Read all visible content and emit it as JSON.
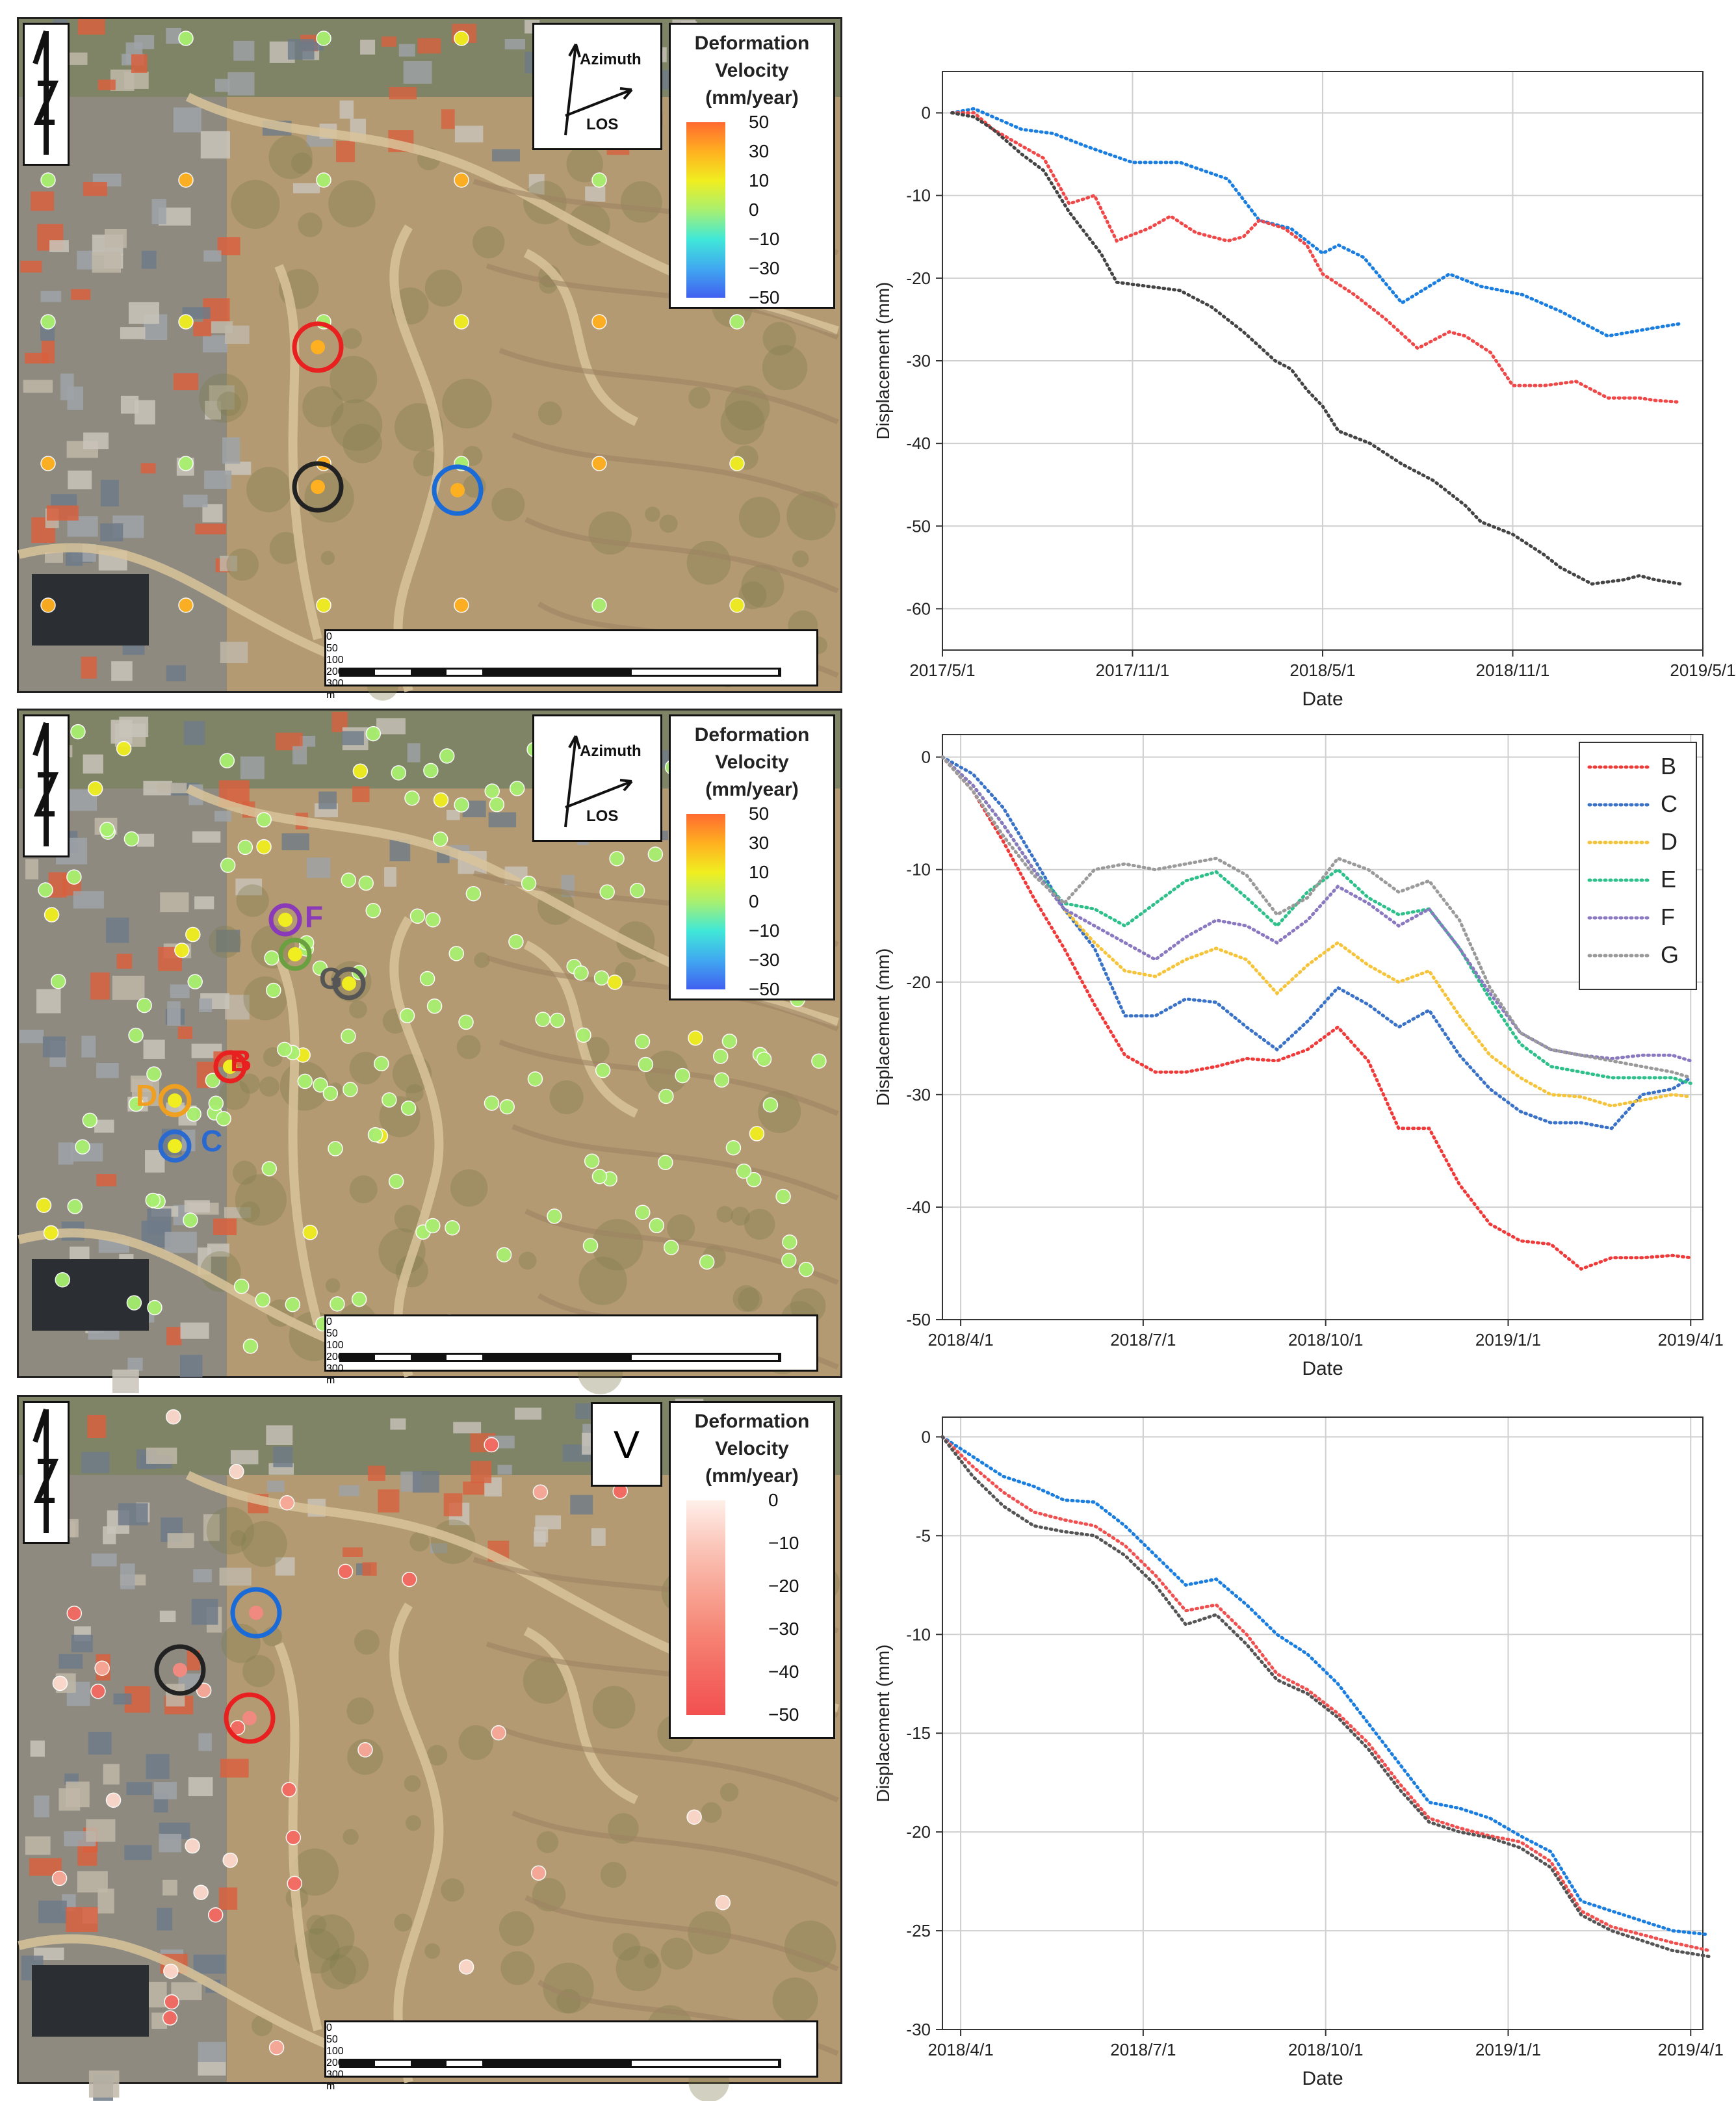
{
  "maps": [
    {
      "legend": {
        "title": [
          "Deformation",
          "Velocity",
          "(mm/year)"
        ],
        "ticks": [
          "50",
          "30",
          "10",
          "0",
          "−10",
          "−30",
          "−50"
        ],
        "colors": [
          "#ff6a30",
          "#ffb020",
          "#f0ee20",
          "#a8f070",
          "#40e8d8",
          "#40a8f0",
          "#4060f0"
        ]
      },
      "direction": {
        "azimuth": "Azimuth",
        "los": "LOS"
      },
      "scale": {
        "ticks": [
          "0",
          "50",
          "100",
          "200",
          "300"
        ],
        "unit": "m"
      },
      "point_labels": []
    },
    {
      "legend": {
        "title": [
          "Deformation",
          "Velocity",
          "(mm/year)"
        ],
        "ticks": [
          "50",
          "30",
          "10",
          "0",
          "−10",
          "−30",
          "−50"
        ],
        "colors": [
          "#ff6a30",
          "#ffb020",
          "#f0ee20",
          "#a8f070",
          "#40e8d8",
          "#40a8f0",
          "#4060f0"
        ]
      },
      "direction": {
        "azimuth": "Azimuth",
        "los": "LOS"
      },
      "scale": {
        "ticks": [
          "0",
          "50",
          "100",
          "200",
          "300"
        ],
        "unit": "m"
      },
      "point_labels": [
        {
          "text": "F",
          "color": "#8a3ab8"
        },
        {
          "text": "G",
          "color": "#555555"
        },
        {
          "text": "B",
          "color": "#e82020"
        },
        {
          "text": "D",
          "color": "#f0a020"
        },
        {
          "text": "C",
          "color": "#2a6ad0"
        }
      ]
    },
    {
      "legend": {
        "title": [
          "Deformation",
          "Velocity",
          "(mm/year)"
        ],
        "ticks": [
          "0",
          "−10",
          "−20",
          "−30",
          "−40",
          "−50"
        ],
        "colors": [
          "#fff0ea",
          "#fbc8bc",
          "#f8a898",
          "#f68878",
          "#f46a62",
          "#f25050"
        ]
      },
      "v_label": "V",
      "scale": {
        "ticks": [
          "0",
          "50",
          "100",
          "200",
          "300"
        ],
        "unit": "m"
      },
      "point_labels": []
    }
  ],
  "chart_data": [
    {
      "type": "line",
      "xlabel": "Date",
      "ylabel": "Displacement (mm)",
      "ylim": [
        -65,
        5
      ],
      "yticks": [
        0,
        -10,
        -20,
        -30,
        -40,
        -50,
        -60
      ],
      "xticks": [
        "2017/5/1",
        "2017/11/1",
        "2018/5/1",
        "2018/11/1",
        "2019/5/1"
      ],
      "xlim": [
        0,
        24
      ],
      "series": [
        {
          "name": "blue circle point",
          "color": "#1a7de0",
          "x": [
            0.3,
            1,
            1.6,
            2.5,
            3.5,
            4.5,
            6,
            7.5,
            9,
            10,
            11,
            12,
            12.5,
            13.3,
            14.5,
            16,
            17,
            18.3,
            19.5,
            21,
            22.5,
            23.3
          ],
          "values": [
            0,
            0.5,
            -0.5,
            -2,
            -2.5,
            -4,
            -6,
            -6,
            -8,
            -13,
            -14,
            -17,
            -16,
            -17.5,
            -23,
            -19.5,
            -21,
            -22,
            -24,
            -27,
            -26,
            -25.5
          ]
        },
        {
          "name": "red circle point",
          "color": "#f04848",
          "x": [
            0.3,
            1,
            1.6,
            2.5,
            3.2,
            4,
            4.8,
            5.5,
            6.5,
            7.2,
            8,
            9,
            9.5,
            10,
            10.8,
            11.5,
            12,
            13,
            14,
            15,
            16,
            16.5,
            17.3,
            18,
            19,
            20,
            21,
            22,
            22.5,
            23.3
          ],
          "values": [
            0,
            0,
            -2,
            -4,
            -5.5,
            -11,
            -10,
            -15.5,
            -14,
            -12.5,
            -14.5,
            -15.5,
            -15,
            -13,
            -14,
            -16,
            -19.5,
            -22,
            -25,
            -28.5,
            -26.5,
            -27,
            -29,
            -33,
            -33,
            -32.5,
            -34.5,
            -34.5,
            -34.8,
            -35
          ]
        },
        {
          "name": "black circle point",
          "color": "#444444",
          "x": [
            0.3,
            1,
            1.6,
            2.5,
            3.2,
            4,
            5,
            5.5,
            6.5,
            7.5,
            8.5,
            9.5,
            10.5,
            11,
            11.5,
            12,
            12.5,
            13.5,
            14.5,
            15.5,
            16,
            16.5,
            17,
            18,
            19,
            19.5,
            20.5,
            21.5,
            22,
            22.5,
            23.3
          ],
          "values": [
            0,
            -0.5,
            -2,
            -5,
            -7,
            -12,
            -17,
            -20.5,
            -21,
            -21.5,
            -23.5,
            -26.5,
            -30,
            -31,
            -33.5,
            -35.5,
            -38.5,
            -40,
            -42.5,
            -44.5,
            -46,
            -47.5,
            -49.5,
            -51,
            -53.5,
            -55,
            -57,
            -56.5,
            -56,
            -56.5,
            -57
          ]
        }
      ]
    },
    {
      "type": "line",
      "xlabel": "Date",
      "ylabel": "Displacement (mm)",
      "ylim": [
        -50,
        2
      ],
      "yticks": [
        0,
        -10,
        -20,
        -30,
        -40,
        -50
      ],
      "xticks": [
        "2018/4/1",
        "2018/7/1",
        "2018/10/1",
        "2019/1/1",
        "2019/4/1"
      ],
      "xlim": [
        0,
        12.5
      ],
      "series": [
        {
          "name": "B",
          "color": "#f03a3a",
          "x": [
            0,
            0.5,
            1,
            1.5,
            2,
            2.5,
            3,
            3.5,
            4,
            4.5,
            5,
            5.5,
            6,
            6.5,
            7,
            7.5,
            8,
            8.5,
            9,
            9.5,
            10,
            10.5,
            11,
            11.5,
            12,
            12.3
          ],
          "values": [
            0,
            -3,
            -7.5,
            -12.5,
            -17,
            -22,
            -26.5,
            -28,
            -28,
            -27.5,
            -26.8,
            -27,
            -26,
            -24,
            -27,
            -33,
            -33,
            -38,
            -41.5,
            -43,
            -43.3,
            -45.5,
            -44.5,
            -44.5,
            -44.3,
            -44.5
          ]
        },
        {
          "name": "C",
          "color": "#3a72c8",
          "x": [
            0,
            0.5,
            1,
            1.5,
            2,
            2.5,
            3,
            3.5,
            4,
            4.5,
            5,
            5.5,
            6,
            6.5,
            7,
            7.5,
            8,
            8.5,
            9,
            9.5,
            10,
            10.5,
            11,
            11.5,
            12,
            12.3
          ],
          "values": [
            0,
            -1.5,
            -4.5,
            -9,
            -13.5,
            -17,
            -23,
            -23,
            -21.5,
            -21.8,
            -24,
            -26,
            -23.5,
            -20.5,
            -22,
            -24,
            -22.5,
            -26.5,
            -29.5,
            -31.5,
            -32.5,
            -32.5,
            -33,
            -30,
            -29.5,
            -28.5
          ]
        },
        {
          "name": "D",
          "color": "#f6c43a",
          "x": [
            0,
            0.5,
            1,
            1.5,
            2,
            2.5,
            3,
            3.5,
            4,
            4.5,
            5,
            5.5,
            6,
            6.5,
            7,
            7.5,
            8,
            8.5,
            9,
            9.5,
            10,
            10.5,
            11,
            11.5,
            12,
            12.3
          ],
          "values": [
            0,
            -2.5,
            -6,
            -10,
            -13.5,
            -16.5,
            -19,
            -19.5,
            -18,
            -17,
            -18,
            -21,
            -18.5,
            -16.5,
            -18.5,
            -20,
            -19,
            -23,
            -26.5,
            -28.5,
            -30,
            -30.2,
            -31,
            -30.5,
            -30,
            -30.2
          ]
        },
        {
          "name": "E",
          "color": "#2ec08a",
          "x": [
            0,
            0.5,
            1,
            1.5,
            2,
            2.5,
            3,
            3.5,
            4,
            4.5,
            5,
            5.5,
            6,
            6.5,
            7,
            7.5,
            8,
            8.5,
            9,
            9.5,
            10,
            10.5,
            11,
            11.5,
            12,
            12.3
          ],
          "values": [
            0,
            -2.5,
            -6,
            -10,
            -13,
            -13.5,
            -15,
            -13,
            -11,
            -10.2,
            -12.5,
            -15,
            -12,
            -10,
            -12.5,
            -14,
            -13.5,
            -17,
            -21.5,
            -25.5,
            -27.5,
            -28,
            -28.5,
            -28.5,
            -28.5,
            -29
          ]
        },
        {
          "name": "F",
          "color": "#8a78c0",
          "x": [
            0,
            0.5,
            1,
            1.5,
            2,
            2.5,
            3,
            3.5,
            4,
            4.5,
            5,
            5.5,
            6,
            6.5,
            7,
            7.5,
            8,
            8.5,
            9,
            9.5,
            10,
            10.5,
            11,
            11.5,
            12,
            12.3
          ],
          "values": [
            0,
            -2.5,
            -6,
            -10,
            -13.5,
            -15,
            -16.5,
            -18,
            -16,
            -14.5,
            -15,
            -16.5,
            -14.5,
            -11.5,
            -13,
            -15,
            -13.5,
            -17,
            -21,
            -24.5,
            -26,
            -26.5,
            -26.8,
            -26.5,
            -26.5,
            -27
          ]
        },
        {
          "name": "G",
          "color": "#9a9a9a",
          "x": [
            0,
            0.5,
            1,
            1.5,
            2,
            2.5,
            3,
            3.5,
            4,
            4.5,
            5,
            5.5,
            6,
            6.5,
            7,
            7.5,
            8,
            8.5,
            9,
            9.5,
            10,
            10.5,
            11,
            11.5,
            12,
            12.3
          ],
          "values": [
            0,
            -3,
            -7,
            -10.5,
            -13,
            -10,
            -9.5,
            -10,
            -9.5,
            -9,
            -10.5,
            -14,
            -12.5,
            -9,
            -10,
            -12,
            -11,
            -14.5,
            -20.5,
            -24.5,
            -26,
            -26.5,
            -27,
            -27.5,
            -28,
            -28.5
          ]
        }
      ]
    },
    {
      "type": "line",
      "xlabel": "Date",
      "ylabel": "Displacement (mm)",
      "ylim": [
        -30,
        1
      ],
      "yticks": [
        0,
        -5,
        -10,
        -15,
        -20,
        -25,
        -30
      ],
      "xticks": [
        "2018/4/1",
        "2018/7/1",
        "2018/10/1",
        "2019/1/1",
        "2019/4/1"
      ],
      "xlim": [
        0,
        12.5
      ],
      "series": [
        {
          "name": "blue circle point",
          "color": "#1a7de0",
          "x": [
            0,
            0.5,
            1,
            1.5,
            2,
            2.5,
            3,
            3.5,
            4,
            4.5,
            5,
            5.5,
            6,
            6.5,
            7,
            7.5,
            8,
            8.5,
            9,
            9.5,
            10,
            10.5,
            11,
            11.5,
            12,
            12.6
          ],
          "values": [
            0,
            -1,
            -2,
            -2.5,
            -3.2,
            -3.3,
            -4.5,
            -6,
            -7.5,
            -7.2,
            -8.5,
            -10,
            -11,
            -12.5,
            -14.5,
            -16.5,
            -18.5,
            -18.8,
            -19.3,
            -20.2,
            -21,
            -23.5,
            -24,
            -24.5,
            -25,
            -25.2
          ]
        },
        {
          "name": "red circle point",
          "color": "#f05050",
          "x": [
            0,
            0.5,
            1,
            1.5,
            2,
            2.5,
            3,
            3.5,
            4,
            4.5,
            5,
            5.5,
            6,
            6.5,
            7,
            7.5,
            8,
            8.5,
            9,
            9.5,
            10,
            10.5,
            11,
            11.5,
            12,
            12.6
          ],
          "values": [
            0,
            -1.5,
            -2.8,
            -3.8,
            -4.2,
            -4.5,
            -5.5,
            -7,
            -8.8,
            -8.5,
            -10,
            -12,
            -12.8,
            -14,
            -15.5,
            -17.5,
            -19.3,
            -19.8,
            -20.2,
            -20.5,
            -21.5,
            -24,
            -24.8,
            -25.2,
            -25.6,
            -26
          ]
        },
        {
          "name": "black circle point",
          "color": "#555555",
          "x": [
            0,
            0.5,
            1,
            1.5,
            2,
            2.5,
            3,
            3.5,
            4,
            4.5,
            5,
            5.5,
            6,
            6.5,
            7,
            7.5,
            8,
            8.5,
            9,
            9.5,
            10,
            10.5,
            11,
            11.5,
            12,
            12.6
          ],
          "values": [
            0,
            -2,
            -3.5,
            -4.5,
            -4.8,
            -5,
            -6,
            -7.5,
            -9.5,
            -9,
            -10.5,
            -12.3,
            -13,
            -14.2,
            -15.8,
            -17.8,
            -19.5,
            -20,
            -20.3,
            -20.8,
            -21.8,
            -24.2,
            -25,
            -25.5,
            -26,
            -26.3
          ]
        }
      ]
    }
  ]
}
